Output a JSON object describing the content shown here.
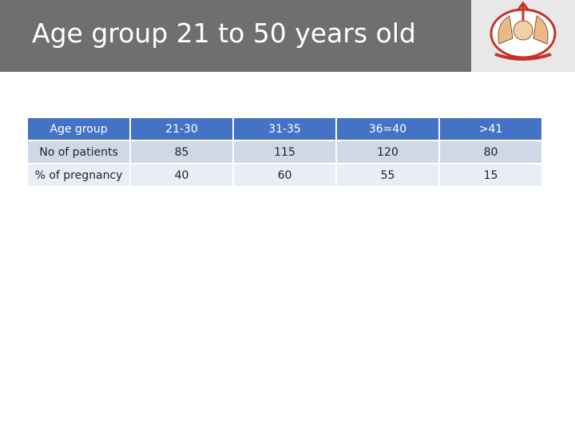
{
  "header": {
    "title": "Age group 21 to 50 years old"
  },
  "table": {
    "header": [
      "Age group",
      "21-30",
      "31-35",
      "36=40",
      ">41"
    ],
    "rows": [
      [
        "No of patients",
        85,
        115,
        120,
        80
      ],
      [
        "% of pregnancy",
        40,
        60,
        55,
        15
      ]
    ]
  }
}
